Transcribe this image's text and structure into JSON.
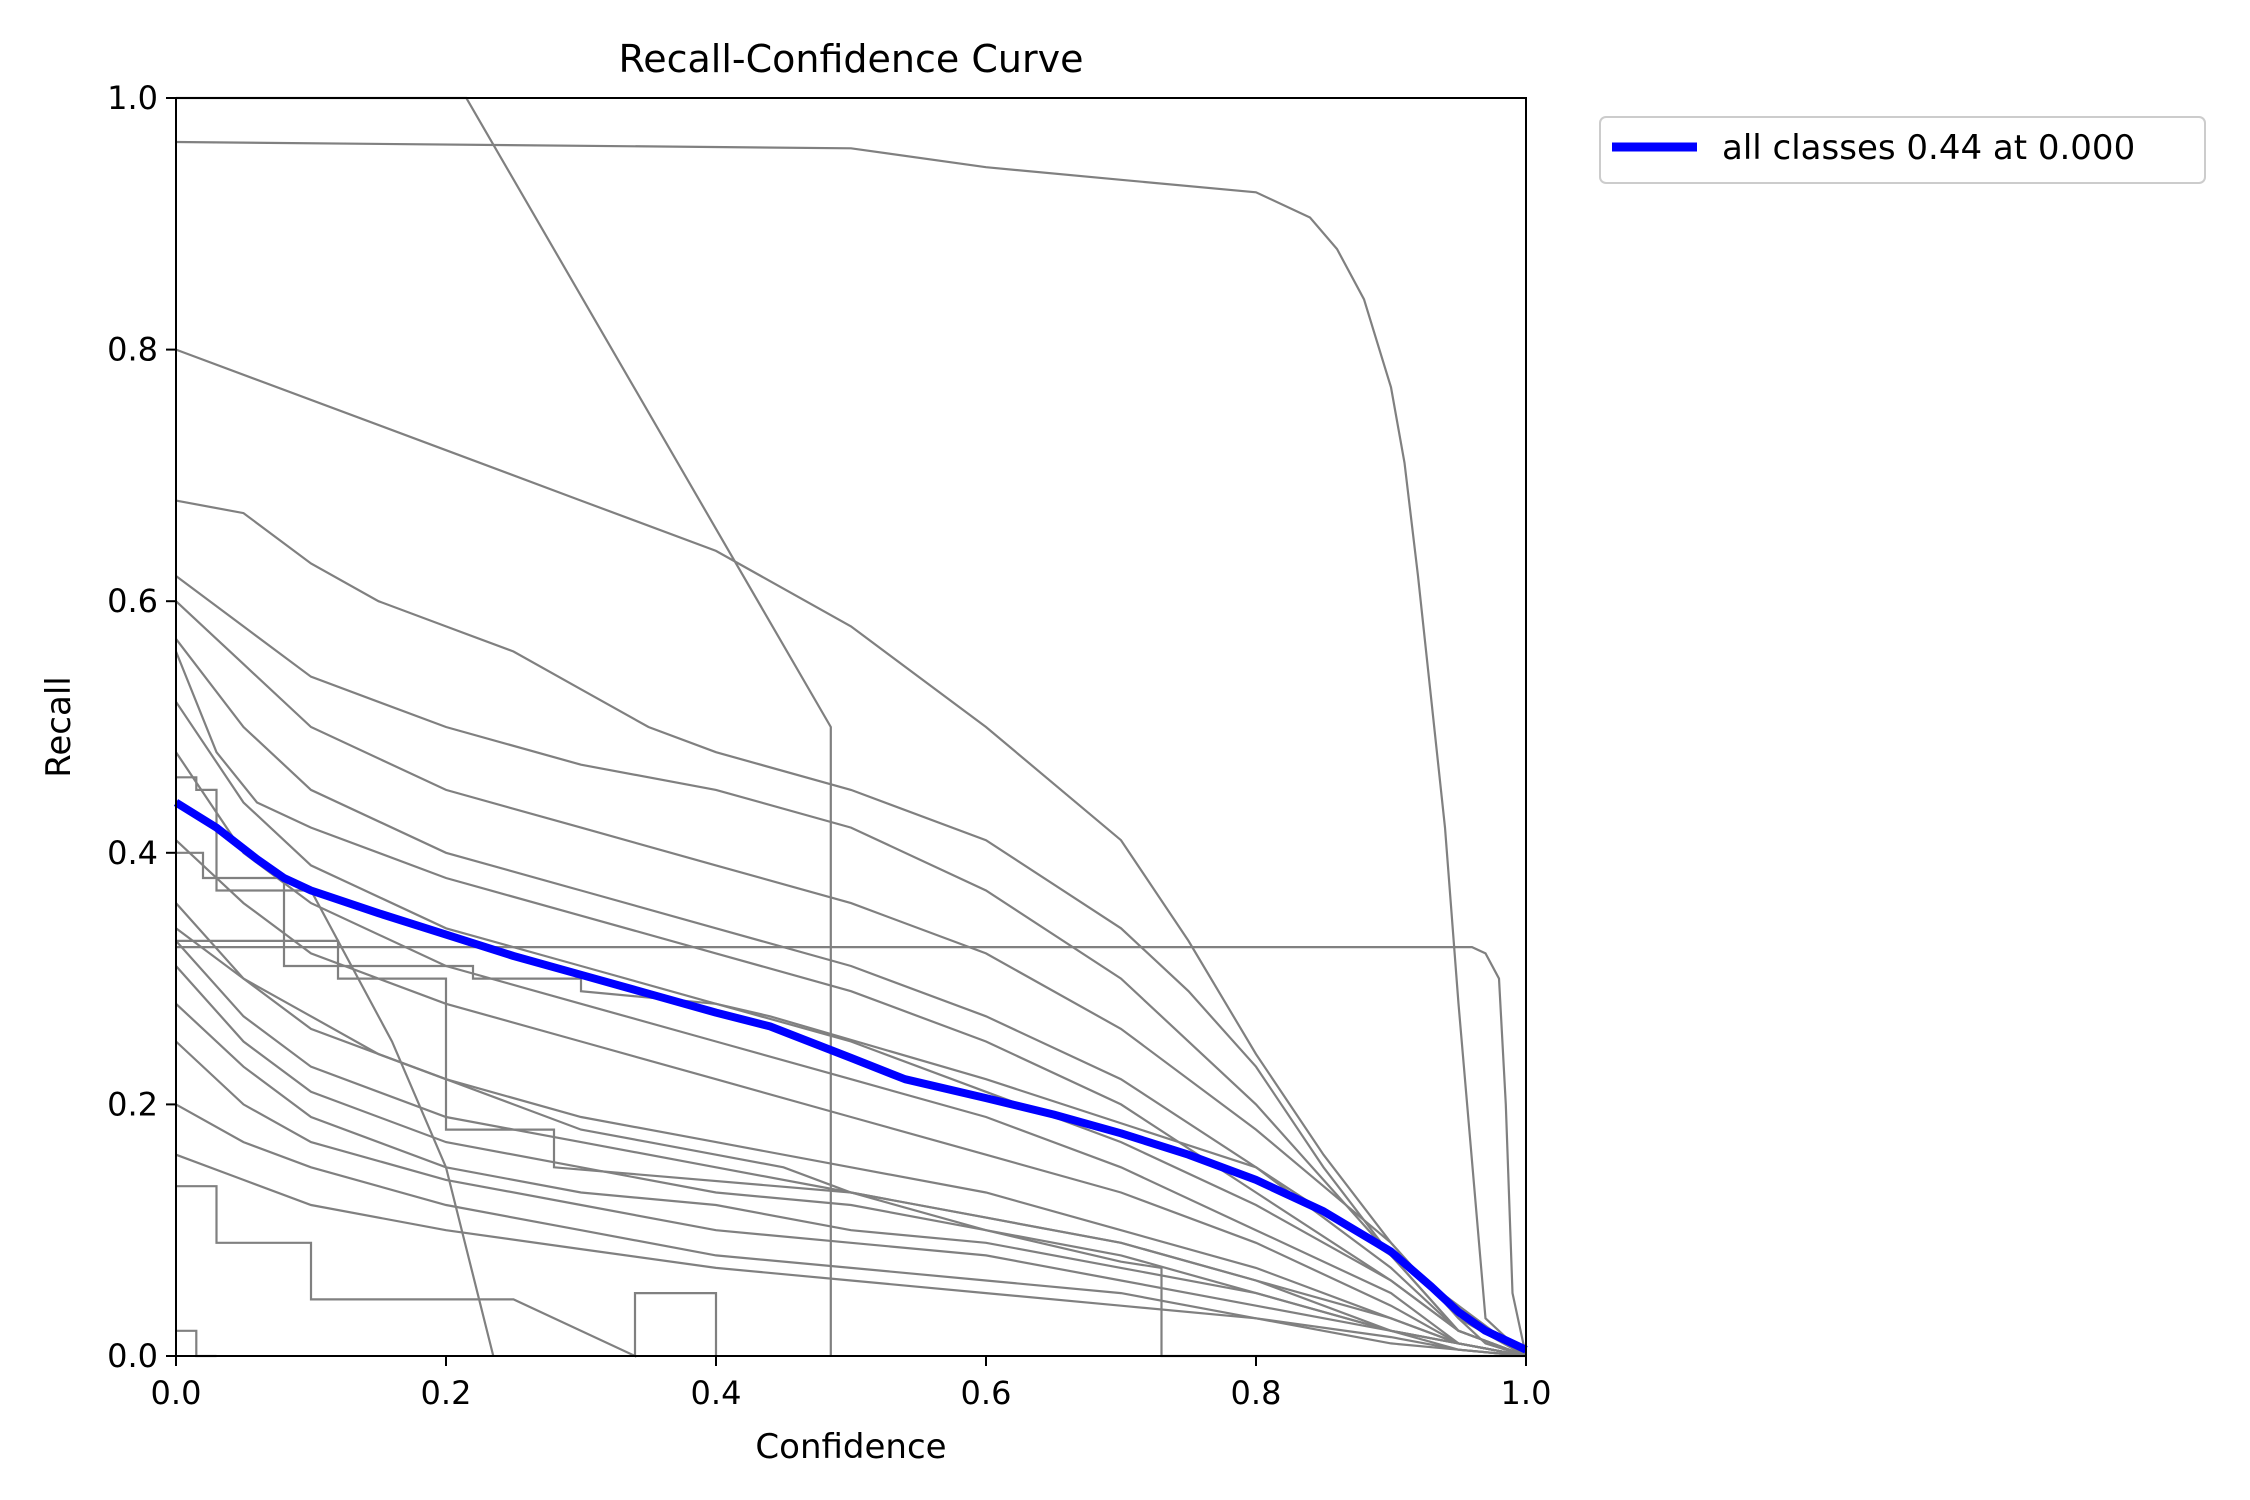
{
  "chart_data": {
    "type": "line",
    "title": "Recall-Confidence Curve",
    "xlabel": "Confidence",
    "ylabel": "Recall",
    "xlim": [
      0,
      1
    ],
    "ylim": [
      0,
      1
    ],
    "xticks": [
      "0.0",
      "0.2",
      "0.4",
      "0.6",
      "0.8",
      "1.0"
    ],
    "yticks": [
      "0.0",
      "0.2",
      "0.4",
      "0.6",
      "0.8",
      "1.0"
    ],
    "grid": false,
    "legend": {
      "placement": "outside-top-right",
      "entries": [
        "all classes 0.44 at 0.000"
      ]
    },
    "series_colors": {
      "classes": "#808080",
      "all": "#0000ff"
    },
    "all_classes": {
      "name": "all classes 0.44 at 0.000",
      "x": [
        0.0,
        0.03,
        0.06,
        0.08,
        0.1,
        0.15,
        0.2,
        0.25,
        0.3,
        0.35,
        0.4,
        0.44,
        0.5,
        0.54,
        0.6,
        0.65,
        0.7,
        0.75,
        0.8,
        0.85,
        0.9,
        0.93,
        0.95,
        0.97,
        1.0
      ],
      "y": [
        0.44,
        0.42,
        0.395,
        0.38,
        0.37,
        0.352,
        0.335,
        0.318,
        0.303,
        0.288,
        0.273,
        0.262,
        0.237,
        0.22,
        0.205,
        0.192,
        0.177,
        0.16,
        0.14,
        0.115,
        0.083,
        0.055,
        0.035,
        0.02,
        0.005
      ]
    },
    "class_curves": [
      {
        "x": [
          0,
          0.5,
          0.6,
          0.7,
          0.8,
          0.84,
          0.86,
          0.88,
          0.9,
          0.91,
          0.92,
          0.93,
          0.94,
          0.95,
          0.97,
          1.0
        ],
        "y": [
          0.965,
          0.96,
          0.945,
          0.935,
          0.925,
          0.905,
          0.88,
          0.84,
          0.77,
          0.71,
          0.62,
          0.52,
          0.42,
          0.28,
          0.03,
          0
        ]
      },
      {
        "x": [
          0,
          0.2,
          0.3,
          0.4,
          0.5,
          0.6,
          0.7,
          0.75,
          0.8,
          0.85,
          0.9,
          0.95,
          0.97,
          1.0
        ],
        "y": [
          0.8,
          0.72,
          0.68,
          0.64,
          0.58,
          0.5,
          0.41,
          0.33,
          0.24,
          0.16,
          0.09,
          0.03,
          0.01,
          0
        ]
      },
      {
        "x": [
          0,
          0.05,
          0.1,
          0.15,
          0.2,
          0.25,
          0.3,
          0.35,
          0.4,
          0.5,
          0.6,
          0.7,
          0.75,
          0.8,
          0.85,
          0.9,
          0.95,
          1.0
        ],
        "y": [
          0.68,
          0.67,
          0.63,
          0.6,
          0.58,
          0.56,
          0.53,
          0.5,
          0.48,
          0.45,
          0.41,
          0.34,
          0.29,
          0.23,
          0.15,
          0.08,
          0.02,
          0
        ]
      },
      {
        "x": [
          0,
          0.05,
          0.1,
          0.2,
          0.3,
          0.4,
          0.5,
          0.6,
          0.7,
          0.8,
          0.85,
          0.9,
          0.95,
          1.0
        ],
        "y": [
          0.62,
          0.58,
          0.54,
          0.5,
          0.47,
          0.45,
          0.42,
          0.37,
          0.3,
          0.2,
          0.14,
          0.08,
          0.02,
          0
        ]
      },
      {
        "x": [
          0,
          0.05,
          0.1,
          0.2,
          0.3,
          0.4,
          0.5,
          0.6,
          0.7,
          0.8,
          0.9,
          0.95,
          1.0
        ],
        "y": [
          0.6,
          0.55,
          0.5,
          0.45,
          0.42,
          0.39,
          0.36,
          0.32,
          0.26,
          0.18,
          0.09,
          0.03,
          0
        ]
      },
      {
        "x": [
          0,
          0.05,
          0.1,
          0.2,
          0.3,
          0.4,
          0.5,
          0.6,
          0.7,
          0.8,
          0.9,
          0.95,
          1.0
        ],
        "y": [
          0.57,
          0.5,
          0.45,
          0.4,
          0.37,
          0.34,
          0.31,
          0.27,
          0.22,
          0.15,
          0.07,
          0.02,
          0
        ]
      },
      {
        "x": [
          0,
          0.03,
          0.06,
          0.1,
          0.2,
          0.3,
          0.4,
          0.5,
          0.6,
          0.7,
          0.8,
          0.9,
          0.95,
          1.0
        ],
        "y": [
          0.56,
          0.48,
          0.44,
          0.42,
          0.38,
          0.35,
          0.32,
          0.29,
          0.25,
          0.2,
          0.13,
          0.06,
          0.02,
          0
        ]
      },
      {
        "x": [
          0,
          0.05,
          0.1,
          0.2,
          0.3,
          0.4,
          0.5,
          0.6,
          0.7,
          0.8,
          0.9,
          0.95,
          1.0
        ],
        "y": [
          0.52,
          0.44,
          0.39,
          0.34,
          0.31,
          0.28,
          0.25,
          0.21,
          0.17,
          0.12,
          0.06,
          0.02,
          0
        ]
      },
      {
        "x": [
          0,
          0.05,
          0.1,
          0.2,
          0.3,
          0.4,
          0.5,
          0.6,
          0.7,
          0.8,
          0.9,
          0.95,
          1.0
        ],
        "y": [
          0.48,
          0.4,
          0.36,
          0.31,
          0.28,
          0.25,
          0.22,
          0.19,
          0.15,
          0.1,
          0.05,
          0.01,
          0
        ]
      },
      {
        "x": [
          0,
          0.05,
          0.1,
          0.2,
          0.3,
          0.4,
          0.5,
          0.6,
          0.7,
          0.8,
          0.9,
          0.95,
          1.0
        ],
        "y": [
          0.41,
          0.36,
          0.32,
          0.28,
          0.25,
          0.22,
          0.19,
          0.16,
          0.13,
          0.09,
          0.04,
          0.01,
          0
        ]
      },
      {
        "x": [
          0,
          0.05,
          0.1,
          0.2,
          0.3,
          0.4,
          0.5,
          0.6,
          0.7,
          0.8,
          0.9,
          0.95,
          1.0
        ],
        "y": [
          0.36,
          0.3,
          0.26,
          0.22,
          0.19,
          0.17,
          0.15,
          0.13,
          0.1,
          0.07,
          0.03,
          0.01,
          0
        ]
      },
      {
        "x": [
          0,
          0.05,
          0.1,
          0.2,
          0.3,
          0.4,
          0.5,
          0.6,
          0.7,
          0.8,
          0.9,
          0.95,
          1.0
        ],
        "y": [
          0.33,
          0.27,
          0.23,
          0.19,
          0.17,
          0.15,
          0.13,
          0.11,
          0.09,
          0.06,
          0.03,
          0.01,
          0
        ]
      },
      {
        "x": [
          0,
          0.05,
          0.1,
          0.2,
          0.3,
          0.4,
          0.5,
          0.6,
          0.7,
          0.8,
          0.9,
          0.95,
          1.0
        ],
        "y": [
          0.31,
          0.25,
          0.21,
          0.17,
          0.15,
          0.13,
          0.12,
          0.1,
          0.08,
          0.05,
          0.02,
          0.01,
          0
        ]
      },
      {
        "x": [
          0,
          0.05,
          0.1,
          0.2,
          0.3,
          0.4,
          0.5,
          0.6,
          0.7,
          0.8,
          0.9,
          0.95,
          1.0
        ],
        "y": [
          0.28,
          0.23,
          0.19,
          0.15,
          0.13,
          0.12,
          0.1,
          0.09,
          0.07,
          0.05,
          0.02,
          0.01,
          0
        ]
      },
      {
        "x": [
          0,
          0.05,
          0.1,
          0.2,
          0.3,
          0.4,
          0.5,
          0.6,
          0.7,
          0.8,
          0.9,
          0.95,
          1.0
        ],
        "y": [
          0.25,
          0.2,
          0.17,
          0.14,
          0.12,
          0.1,
          0.09,
          0.08,
          0.06,
          0.04,
          0.02,
          0.005,
          0
        ]
      },
      {
        "x": [
          0,
          0.05,
          0.1,
          0.2,
          0.3,
          0.4,
          0.5,
          0.6,
          0.7,
          0.8,
          0.9,
          0.95,
          1.0
        ],
        "y": [
          0.2,
          0.17,
          0.15,
          0.12,
          0.1,
          0.08,
          0.07,
          0.06,
          0.05,
          0.03,
          0.015,
          0.005,
          0
        ]
      },
      {
        "x": [
          0,
          0.05,
          0.1,
          0.2,
          0.3,
          0.4,
          0.5,
          0.6,
          0.7,
          0.8,
          0.9,
          0.95,
          1.0
        ],
        "y": [
          0.16,
          0.14,
          0.12,
          0.1,
          0.085,
          0.07,
          0.06,
          0.05,
          0.04,
          0.03,
          0.01,
          0.005,
          0
        ]
      },
      {
        "x": [
          0,
          0.02,
          0.02,
          0.08,
          0.08,
          0.22,
          0.22,
          0.3,
          0.3,
          0.4,
          0.44,
          0.6,
          0.8,
          0.9,
          1.0
        ],
        "y": [
          0.4,
          0.4,
          0.38,
          0.38,
          0.31,
          0.31,
          0.3,
          0.3,
          0.29,
          0.28,
          0.27,
          0.22,
          0.15,
          0.08,
          0
        ]
      },
      {
        "x": [
          0,
          0.015,
          0.015,
          0.03,
          0.03,
          0.1,
          0.1,
          0.16,
          0.2,
          0.235
        ],
        "y": [
          0.46,
          0.46,
          0.45,
          0.45,
          0.37,
          0.37,
          0.37,
          0.25,
          0.15,
          0
        ]
      },
      {
        "x": [
          0,
          0.215,
          0.485,
          0.485
        ],
        "y": [
          1.0,
          1.0,
          0.5,
          0
        ]
      },
      {
        "x": [
          0,
          0.12,
          0.12,
          0.2,
          0.2,
          0.28,
          0.28,
          0.5,
          0.6,
          0.7,
          0.73,
          0.73,
          0.8,
          0.9,
          1.0
        ],
        "y": [
          0.33,
          0.33,
          0.3,
          0.3,
          0.18,
          0.18,
          0.15,
          0.13,
          0.1,
          0.075,
          0.07,
          0,
          0,
          0,
          0
        ]
      },
      {
        "x": [
          0,
          0.96,
          0.97,
          0.98,
          0.985,
          0.99,
          1.0
        ],
        "y": [
          0.325,
          0.325,
          0.32,
          0.3,
          0.2,
          0.05,
          0
        ]
      },
      {
        "x": [
          0,
          0.03,
          0.03,
          0.1,
          0.1,
          0.25,
          0.25,
          0.34,
          0.34,
          0.4,
          0.4
        ],
        "y": [
          0.135,
          0.135,
          0.09,
          0.09,
          0.045,
          0.045,
          0.045,
          0.0,
          0.05,
          0.05,
          0
        ]
      },
      {
        "x": [
          0,
          0.015,
          0.015,
          0.03,
          0.03
        ],
        "y": [
          0.02,
          0.02,
          0.0,
          0,
          0
        ]
      },
      {
        "x": [
          0,
          0.05,
          0.1,
          0.15,
          0.2,
          0.25,
          0.3,
          0.35,
          0.4,
          0.45,
          0.5,
          0.6,
          0.7,
          0.8,
          0.9,
          1.0
        ],
        "y": [
          0.34,
          0.3,
          0.27,
          0.24,
          0.22,
          0.2,
          0.18,
          0.17,
          0.16,
          0.15,
          0.13,
          0.11,
          0.09,
          0.06,
          0.02,
          0
        ]
      }
    ]
  }
}
